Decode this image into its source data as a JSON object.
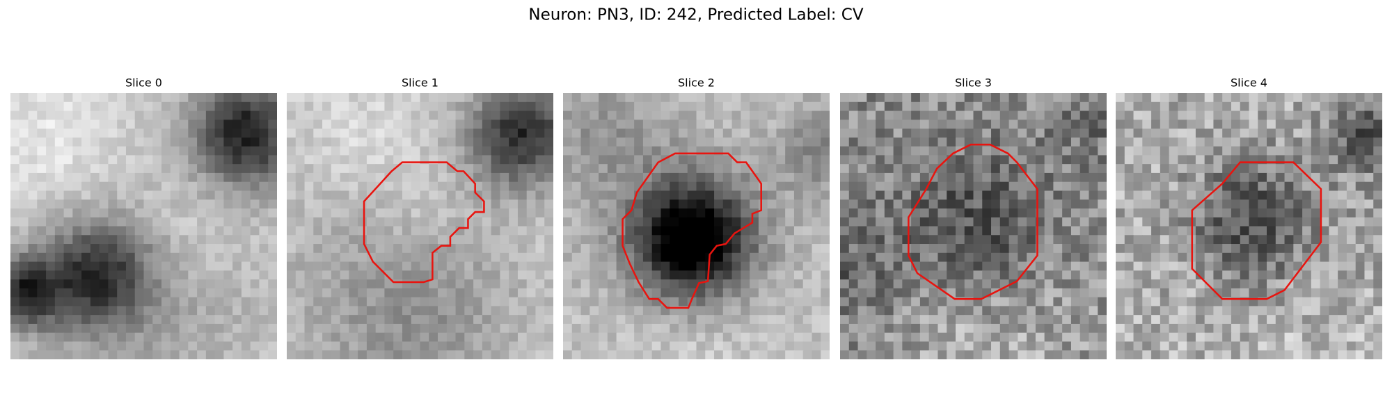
{
  "title": "Neuron: PN3, ID: 242, Predicted Label: CV",
  "panels": [
    {
      "title": "Slice 0"
    },
    {
      "title": "Slice 1"
    },
    {
      "title": "Slice 2"
    },
    {
      "title": "Slice 3"
    },
    {
      "title": "Slice 4"
    }
  ]
}
